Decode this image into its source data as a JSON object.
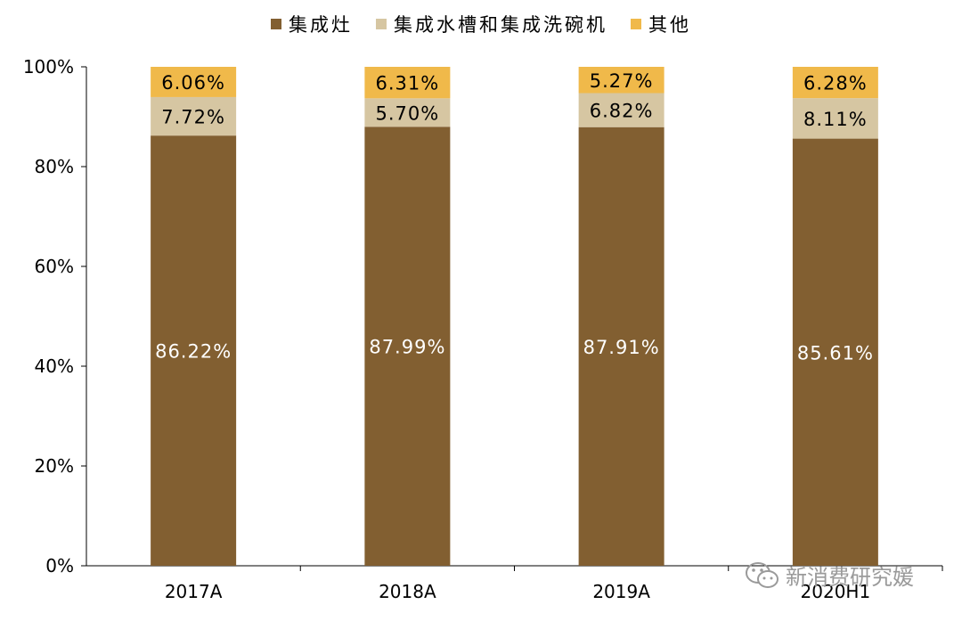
{
  "chart_data": {
    "type": "bar",
    "stacked": true,
    "categories": [
      "2017A",
      "2018A",
      "2019A",
      "2020H1"
    ],
    "series": [
      {
        "name": "集成灶",
        "color": "#825f31",
        "label_color": "#ffffff",
        "values": [
          86.22,
          87.99,
          87.91,
          85.61
        ],
        "labels": [
          "86.22%",
          "87.99%",
          "87.91%",
          "85.61%"
        ]
      },
      {
        "name": "集成水槽和集成洗碗机",
        "color": "#d6c6a2",
        "label_color": "#000000",
        "values": [
          7.72,
          5.7,
          6.82,
          8.11
        ],
        "labels": [
          "7.72%",
          "5.70%",
          "6.82%",
          "8.11%"
        ]
      },
      {
        "name": "其他",
        "color": "#f0b94a",
        "label_color": "#000000",
        "values": [
          6.06,
          6.31,
          5.27,
          6.28
        ],
        "labels": [
          "6.06%",
          "6.31%",
          "5.27%",
          "6.28%"
        ]
      }
    ],
    "yticks": [
      "0%",
      "20%",
      "40%",
      "60%",
      "80%",
      "100%"
    ],
    "ylim": [
      0,
      100
    ],
    "legend_position": "top",
    "grid": false
  },
  "watermark": {
    "text": "新消费研究媛",
    "icon": "wechat-icon"
  }
}
